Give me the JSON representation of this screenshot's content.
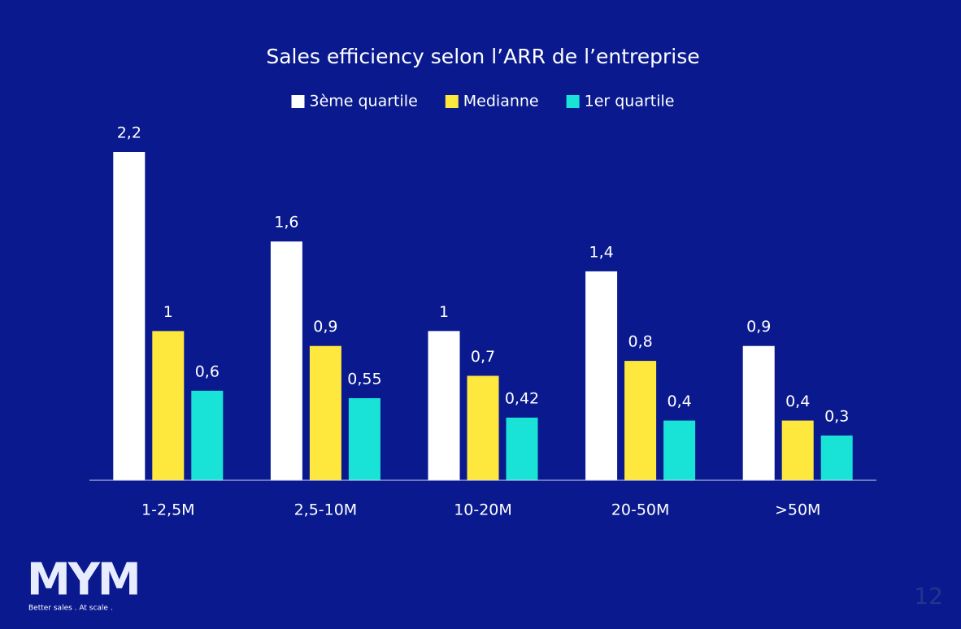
{
  "chart_data": {
    "type": "bar",
    "title": "Sales efficiency selon l’ARR de l’entreprise",
    "categories": [
      "1-2,5M",
      "2,5-10M",
      "10-20M",
      "20-50M",
      ">50M"
    ],
    "series": [
      {
        "name": "3ème quartile",
        "color": "#ffffff",
        "values": [
          2.2,
          1.6,
          1,
          1.4,
          0.9
        ],
        "value_labels": [
          "2,2",
          "1,6",
          "1",
          "1,4",
          "0,9"
        ]
      },
      {
        "name": "Medianne",
        "color": "#ffe83d",
        "values": [
          1,
          0.9,
          0.7,
          0.8,
          0.4
        ],
        "value_labels": [
          "1",
          "0,9",
          "0,7",
          "0,8",
          "0,4"
        ]
      },
      {
        "name": "1er quartile",
        "color": "#19e3d6",
        "values": [
          0.6,
          0.55,
          0.42,
          0.4,
          0.3
        ],
        "value_labels": [
          "0,6",
          "0,55",
          "0,42",
          "0,4",
          "0,3"
        ]
      }
    ],
    "legend": "top"
  },
  "logo": {
    "text": "MYM",
    "tagline": "Better sales . At scale ."
  },
  "page_number": "12"
}
